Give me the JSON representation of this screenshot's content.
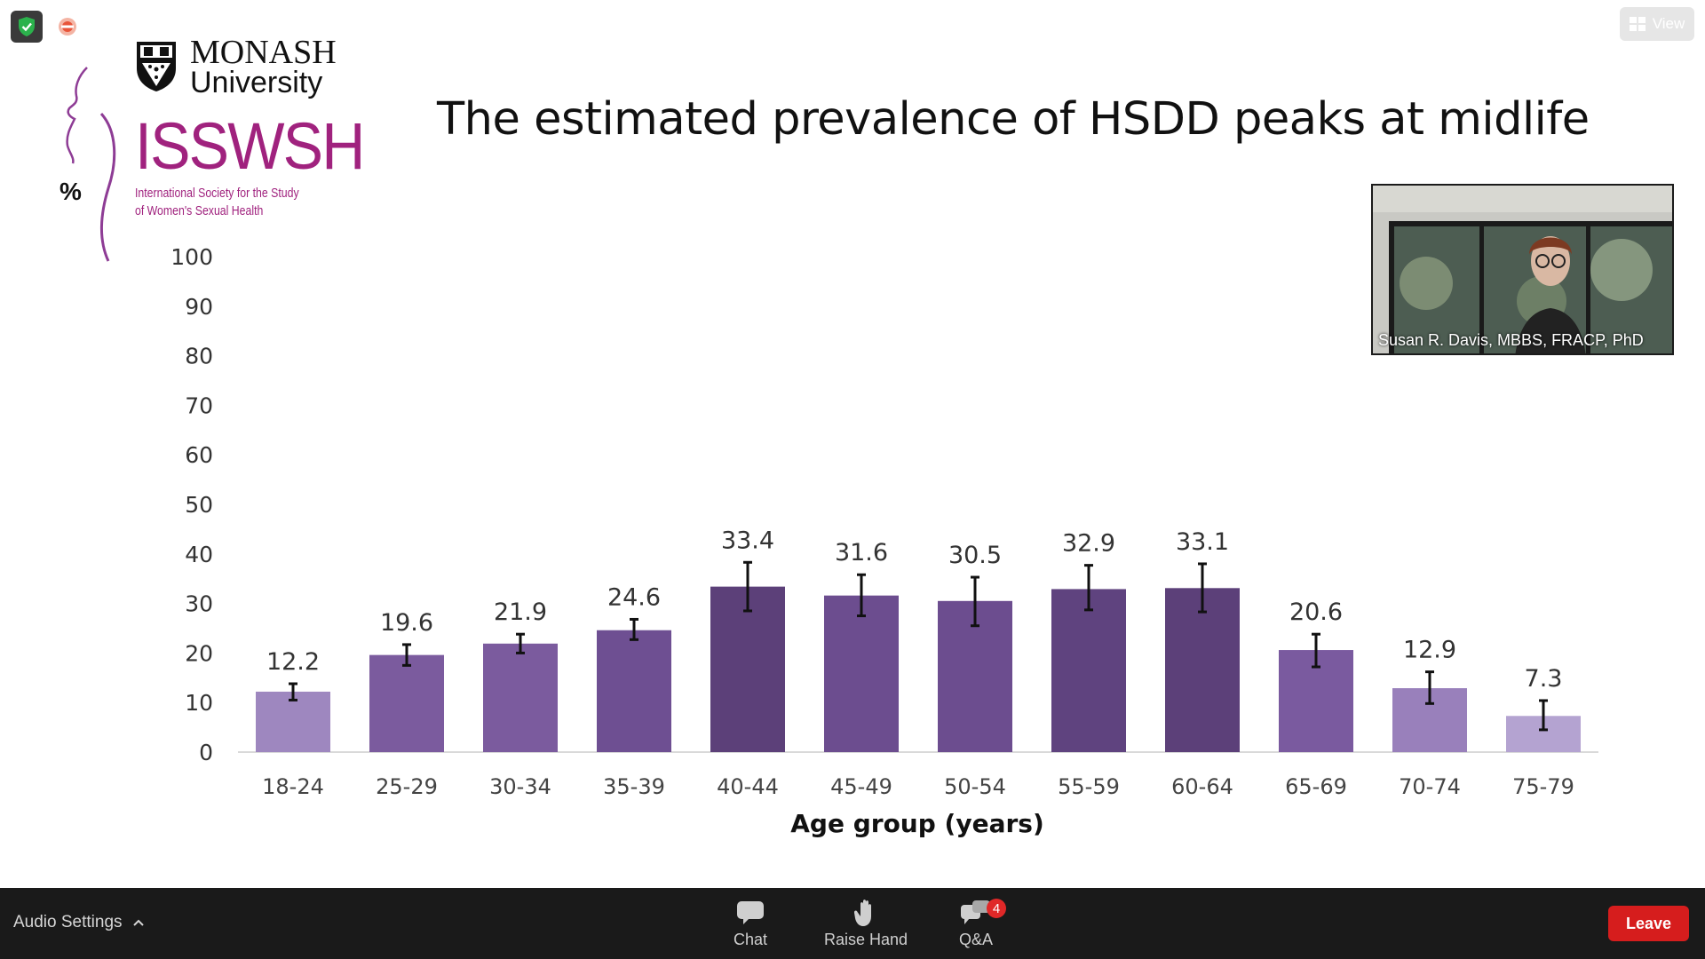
{
  "window": {
    "view_label": "View"
  },
  "logos": {
    "monash_line1": "MONASH",
    "monash_line2": "University",
    "isswsh_big": "ISSWSH",
    "isswsh_small_1": "International Society for the Study",
    "isswsh_small_2": "of Women's Sexual Health"
  },
  "slide": {
    "title": "The estimated prevalence of HSDD peaks at midlife",
    "unit_label": "%"
  },
  "video": {
    "participant_name": "Susan R. Davis, MBBS, FRACP, PhD"
  },
  "toolbar": {
    "audio_settings": "Audio Settings",
    "chat": "Chat",
    "raise_hand": "Raise Hand",
    "qa": "Q&A",
    "qa_badge": "4",
    "leave": "Leave"
  },
  "colors": {
    "brand_magenta": "#a0227e",
    "leave_red": "#d61d1d",
    "toolbar_bg": "#1a1a1a"
  },
  "icons": [
    "shield-check-icon",
    "record-icon",
    "grid-view-icon",
    "chevron-up-icon",
    "chat-bubble-icon",
    "raise-hand-icon",
    "qa-bubbles-icon"
  ],
  "chart_data": {
    "type": "bar",
    "title": "The estimated prevalence of HSDD peaks at midlife",
    "xlabel": "Age group (years)",
    "ylabel": "%",
    "ylim": [
      0,
      100
    ],
    "yticks": [
      0,
      10,
      20,
      30,
      40,
      50,
      60,
      70,
      80,
      90,
      100
    ],
    "grid": false,
    "categories": [
      "18-24",
      "25-29",
      "30-34",
      "35-39",
      "40-44",
      "45-49",
      "50-54",
      "55-59",
      "60-64",
      "65-69",
      "70-74",
      "75-79"
    ],
    "values": [
      12.2,
      19.6,
      21.9,
      24.6,
      33.4,
      31.6,
      30.5,
      32.9,
      33.1,
      20.6,
      12.9,
      7.3
    ],
    "error_low": [
      10.5,
      17.5,
      20.0,
      22.7,
      28.5,
      27.5,
      25.5,
      28.7,
      28.3,
      17.2,
      9.8,
      4.5
    ],
    "error_high": [
      13.8,
      21.7,
      23.8,
      26.8,
      38.3,
      35.8,
      35.3,
      37.7,
      38.0,
      23.8,
      16.2,
      10.4
    ],
    "bar_colors": [
      "#9e87bf",
      "#7b5b9e",
      "#7b5b9e",
      "#6e4f92",
      "#5c4079",
      "#6c4d8f",
      "#6c4d8f",
      "#5f437f",
      "#5c4079",
      "#7a5a9f",
      "#9980bb",
      "#b4a3d1"
    ]
  }
}
